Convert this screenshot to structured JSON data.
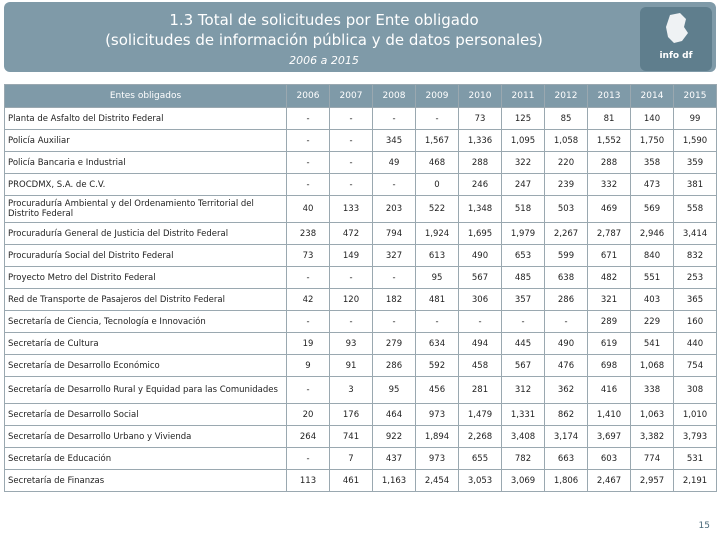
{
  "header": {
    "title_line1": "1.3 Total de solicitudes por Ente obligado",
    "title_line2": "(solicitudes de información pública y de datos personales)",
    "subtitle": "2006 a 2015",
    "logo_text": "info df"
  },
  "table": {
    "columns": [
      "Entes obligados",
      "2006",
      "2007",
      "2008",
      "2009",
      "2010",
      "2011",
      "2012",
      "2013",
      "2014",
      "2015"
    ],
    "rows": [
      {
        "name": "Planta de Asfalto del Distrito Federal",
        "values": [
          "-",
          "-",
          "-",
          "-",
          "73",
          "125",
          "85",
          "81",
          "140",
          "99"
        ]
      },
      {
        "name": "Policía Auxiliar",
        "values": [
          "-",
          "-",
          "345",
          "1,567",
          "1,336",
          "1,095",
          "1,058",
          "1,552",
          "1,750",
          "1,590"
        ]
      },
      {
        "name": "Policía Bancaria e Industrial",
        "values": [
          "-",
          "-",
          "49",
          "468",
          "288",
          "322",
          "220",
          "288",
          "358",
          "359"
        ]
      },
      {
        "name": "PROCDMX, S.A. de C.V.",
        "values": [
          "-",
          "-",
          "-",
          "0",
          "246",
          "247",
          "239",
          "332",
          "473",
          "381"
        ]
      },
      {
        "name": "Procuraduría Ambiental y del Ordenamiento Territorial del Distrito Federal",
        "values": [
          "40",
          "133",
          "203",
          "522",
          "1,348",
          "518",
          "503",
          "469",
          "569",
          "558"
        ]
      },
      {
        "name": "Procuraduría General de Justicia del Distrito Federal",
        "values": [
          "238",
          "472",
          "794",
          "1,924",
          "1,695",
          "1,979",
          "2,267",
          "2,787",
          "2,946",
          "3,414"
        ]
      },
      {
        "name": "Procuraduría Social del Distrito Federal",
        "values": [
          "73",
          "149",
          "327",
          "613",
          "490",
          "653",
          "599",
          "671",
          "840",
          "832"
        ]
      },
      {
        "name": "Proyecto Metro del Distrito Federal",
        "values": [
          "-",
          "-",
          "-",
          "95",
          "567",
          "485",
          "638",
          "482",
          "551",
          "253"
        ]
      },
      {
        "name": "Red de Transporte de Pasajeros del Distrito Federal",
        "values": [
          "42",
          "120",
          "182",
          "481",
          "306",
          "357",
          "286",
          "321",
          "403",
          "365"
        ]
      },
      {
        "name": "Secretaría de Ciencia, Tecnología e Innovación",
        "values": [
          "-",
          "-",
          "-",
          "-",
          "-",
          "-",
          "-",
          "289",
          "229",
          "160"
        ]
      },
      {
        "name": "Secretaría de Cultura",
        "values": [
          "19",
          "93",
          "279",
          "634",
          "494",
          "445",
          "490",
          "619",
          "541",
          "440"
        ]
      },
      {
        "name": "Secretaría de Desarrollo Económico",
        "values": [
          "9",
          "91",
          "286",
          "592",
          "458",
          "567",
          "476",
          "698",
          "1,068",
          "754"
        ]
      },
      {
        "name": "Secretaría de Desarrollo Rural y Equidad para las Comunidades",
        "values": [
          "-",
          "3",
          "95",
          "456",
          "281",
          "312",
          "362",
          "416",
          "338",
          "308"
        ]
      },
      {
        "name": "Secretaría de Desarrollo Social",
        "values": [
          "20",
          "176",
          "464",
          "973",
          "1,479",
          "1,331",
          "862",
          "1,410",
          "1,063",
          "1,010"
        ]
      },
      {
        "name": "Secretaría de Desarrollo Urbano y Vivienda",
        "values": [
          "264",
          "741",
          "922",
          "1,894",
          "2,268",
          "3,408",
          "3,174",
          "3,697",
          "3,382",
          "3,793"
        ]
      },
      {
        "name": "Secretaría de Educación",
        "values": [
          "-",
          "7",
          "437",
          "973",
          "655",
          "782",
          "663",
          "603",
          "774",
          "531"
        ]
      },
      {
        "name": "Secretaría de Finanzas",
        "values": [
          "113",
          "461",
          "1,163",
          "2,454",
          "3,053",
          "3,069",
          "1,806",
          "2,467",
          "2,957",
          "2,191"
        ]
      }
    ]
  },
  "footer": {
    "page_number": "15"
  }
}
